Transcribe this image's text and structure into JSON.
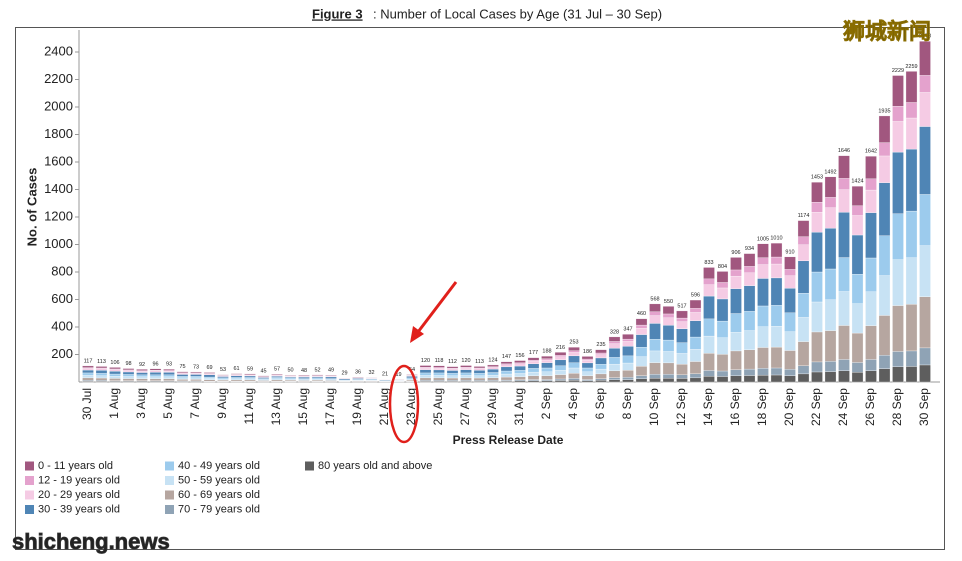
{
  "chart_data": {
    "type": "stacked_bar",
    "title_prefix": "Figure 3",
    "title": ": Number of Local Cases by Age (31 Jul – 30 Sep)",
    "y_label": "No. of Cases",
    "x_label": "Press Release Date",
    "ylim": [
      0,
      2560
    ],
    "yticks": [
      200,
      400,
      600,
      800,
      1000,
      1200,
      1400,
      1600,
      1800,
      2000,
      2200,
      2400
    ],
    "grid": false,
    "categories": [
      "30 Jul",
      null,
      "1 Aug",
      null,
      "3 Aug",
      null,
      "5 Aug",
      null,
      "7 Aug",
      null,
      "9 Aug",
      null,
      "11 Aug",
      null,
      "13 Aug",
      null,
      "15 Aug",
      null,
      "17 Aug",
      null,
      "19 Aug",
      null,
      "21 Aug",
      null,
      "23 Aug",
      null,
      "25 Aug",
      null,
      "27 Aug",
      null,
      "29 Aug",
      null,
      "31 Aug",
      null,
      "2 Sep",
      null,
      "4 Sep",
      null,
      "6 Sep",
      null,
      "8 Sep",
      null,
      "10 Sep",
      null,
      "12 Sep",
      null,
      "14 Sep",
      null,
      "16 Sep",
      null,
      "18 Sep",
      null,
      "20 Sep",
      null,
      "22 Sep",
      null,
      "24 Sep",
      null,
      "26 Sep",
      null,
      "28 Sep",
      null,
      "30 Sep"
    ],
    "totals": [
      117,
      113,
      106,
      98,
      92,
      96,
      93,
      75,
      73,
      69,
      53,
      61,
      59,
      45,
      57,
      50,
      48,
      52,
      49,
      29,
      36,
      32,
      21,
      19,
      54,
      120,
      118,
      112,
      120,
      113,
      124,
      147,
      156,
      177,
      188,
      216,
      253,
      186,
      235,
      328,
      347,
      460,
      568,
      550,
      517,
      596,
      833,
      804,
      906,
      934,
      1005,
      1010,
      910,
      1174,
      1453,
      1492,
      1646,
      1424,
      1642,
      1935,
      2229,
      2259,
      2478
    ],
    "series": [
      {
        "name": "0 - 11 years old",
        "color": "#a1577f",
        "values": [
          12,
          11,
          11,
          10,
          9,
          10,
          9,
          8,
          7,
          7,
          5,
          6,
          6,
          5,
          6,
          5,
          5,
          5,
          5,
          3,
          4,
          3,
          2,
          2,
          5,
          12,
          12,
          11,
          12,
          11,
          12,
          15,
          16,
          18,
          19,
          22,
          25,
          19,
          24,
          33,
          35,
          46,
          57,
          55,
          52,
          60,
          83,
          80,
          91,
          93,
          101,
          101,
          91,
          117,
          145,
          149,
          165,
          142,
          164,
          194,
          223,
          226,
          248
        ]
      },
      {
        "name": "12 - 19 years old",
        "color": "#e4a2cd",
        "values": [
          6,
          6,
          5,
          5,
          5,
          5,
          5,
          4,
          4,
          3,
          3,
          3,
          3,
          2,
          3,
          3,
          2,
          3,
          2,
          1,
          2,
          2,
          1,
          1,
          3,
          6,
          6,
          6,
          6,
          6,
          6,
          7,
          8,
          9,
          9,
          11,
          13,
          9,
          12,
          16,
          17,
          23,
          28,
          28,
          26,
          30,
          42,
          40,
          45,
          47,
          50,
          51,
          46,
          59,
          73,
          75,
          82,
          71,
          82,
          97,
          111,
          113,
          124
        ]
      },
      {
        "name": "20 - 29 years old",
        "color": "#f5cbe4",
        "values": [
          12,
          11,
          11,
          10,
          9,
          10,
          9,
          8,
          7,
          7,
          5,
          6,
          6,
          5,
          6,
          5,
          5,
          5,
          5,
          3,
          4,
          3,
          2,
          2,
          5,
          12,
          12,
          11,
          12,
          11,
          12,
          15,
          16,
          18,
          19,
          22,
          25,
          19,
          24,
          33,
          35,
          46,
          57,
          55,
          52,
          60,
          83,
          80,
          91,
          93,
          101,
          101,
          91,
          117,
          145,
          149,
          165,
          142,
          164,
          194,
          223,
          226,
          248
        ]
      },
      {
        "name": "30 - 39 years old",
        "color": "#4f85b5",
        "values": [
          21,
          22,
          21,
          18,
          17,
          19,
          18,
          14,
          14,
          16,
          10,
          13,
          11,
          8,
          9,
          7,
          11,
          9,
          12,
          8,
          7,
          5,
          5,
          3,
          11,
          24,
          22,
          21,
          24,
          22,
          25,
          30,
          31,
          33,
          39,
          43,
          50,
          37,
          46,
          67,
          70,
          92,
          115,
          107,
          101,
          119,
          166,
          161,
          181,
          187,
          200,
          199,
          179,
          235,
          290,
          297,
          329,
          285,
          330,
          386,
          448,
          451,
          494
        ]
      },
      {
        "name": "40 - 49 years old",
        "color": "#9ccbed",
        "values": [
          18,
          17,
          16,
          15,
          14,
          14,
          14,
          11,
          11,
          10,
          8,
          9,
          9,
          7,
          9,
          8,
          7,
          8,
          7,
          4,
          5,
          5,
          3,
          3,
          8,
          18,
          18,
          17,
          18,
          17,
          19,
          22,
          23,
          27,
          28,
          32,
          38,
          28,
          35,
          49,
          52,
          69,
          85,
          83,
          78,
          89,
          125,
          121,
          136,
          140,
          151,
          152,
          137,
          176,
          218,
          224,
          247,
          214,
          246,
          290,
          334,
          339,
          372
        ]
      },
      {
        "name": "50 - 59 years old",
        "color": "#c7e2f4",
        "values": [
          18,
          17,
          16,
          15,
          14,
          14,
          14,
          11,
          11,
          10,
          8,
          9,
          9,
          7,
          9,
          8,
          7,
          8,
          7,
          4,
          5,
          5,
          3,
          3,
          8,
          18,
          18,
          17,
          18,
          17,
          19,
          22,
          23,
          27,
          28,
          32,
          38,
          28,
          35,
          49,
          52,
          69,
          85,
          83,
          78,
          89,
          125,
          121,
          136,
          140,
          151,
          152,
          137,
          176,
          218,
          224,
          247,
          214,
          246,
          290,
          334,
          339,
          372
        ]
      },
      {
        "name": "60 - 69 years old",
        "color": "#b6a6a0",
        "values": [
          18,
          17,
          16,
          15,
          14,
          14,
          14,
          11,
          11,
          10,
          8,
          9,
          9,
          7,
          9,
          8,
          7,
          8,
          7,
          4,
          5,
          5,
          3,
          3,
          8,
          18,
          18,
          17,
          18,
          17,
          19,
          22,
          23,
          27,
          28,
          32,
          38,
          28,
          35,
          49,
          52,
          69,
          85,
          83,
          78,
          89,
          125,
          121,
          136,
          140,
          151,
          152,
          137,
          176,
          218,
          224,
          247,
          214,
          246,
          290,
          334,
          339,
          372
        ]
      },
      {
        "name": "70 - 79 years old",
        "color": "#8fa3b5",
        "values": [
          6,
          6,
          5,
          5,
          5,
          5,
          5,
          4,
          4,
          3,
          3,
          3,
          3,
          2,
          3,
          3,
          2,
          3,
          2,
          1,
          2,
          2,
          1,
          1,
          3,
          6,
          6,
          6,
          6,
          6,
          6,
          7,
          8,
          9,
          9,
          11,
          13,
          9,
          12,
          16,
          17,
          23,
          28,
          28,
          26,
          30,
          42,
          40,
          45,
          47,
          50,
          51,
          46,
          59,
          73,
          75,
          82,
          71,
          82,
          97,
          111,
          113,
          124
        ]
      },
      {
        "name": "80 years old and above",
        "color": "#5e5e5e",
        "values": [
          6,
          6,
          5,
          5,
          5,
          5,
          5,
          4,
          4,
          3,
          3,
          3,
          3,
          2,
          3,
          3,
          2,
          3,
          2,
          1,
          2,
          2,
          1,
          1,
          3,
          6,
          6,
          6,
          6,
          6,
          6,
          7,
          8,
          9,
          9,
          11,
          13,
          9,
          12,
          16,
          17,
          23,
          28,
          28,
          26,
          30,
          42,
          40,
          45,
          47,
          50,
          51,
          46,
          59,
          73,
          75,
          82,
          71,
          82,
          97,
          111,
          113,
          124
        ]
      }
    ]
  },
  "watermarks": {
    "top": "狮城新闻",
    "bottom": "shicheng.news"
  }
}
